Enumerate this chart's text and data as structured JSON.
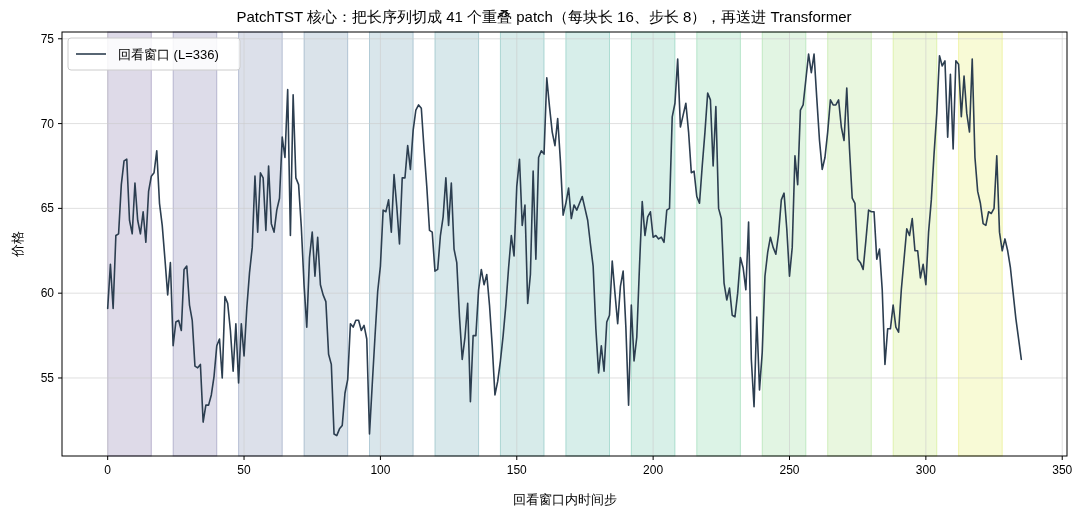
{
  "chart_data": {
    "type": "line",
    "title": "PatchTST 核心：把长序列切成 41 个重叠 patch（每块长 16、步长 8），再送进 Transformer",
    "xlabel": "回看窗口内时间步",
    "ylabel": "价格",
    "x": [
      0,
      1,
      2,
      3,
      4,
      5,
      6,
      7,
      8,
      9,
      10,
      11,
      12,
      13,
      14,
      15,
      16,
      17,
      18,
      19,
      20,
      21,
      22,
      23,
      24,
      25,
      26,
      27,
      28,
      29,
      30,
      31,
      32,
      33,
      34,
      35,
      36,
      37,
      38,
      39,
      40,
      41,
      42,
      43,
      44,
      45,
      46,
      47,
      48,
      49,
      50,
      51,
      52,
      53,
      54,
      55,
      56,
      57,
      58,
      59,
      60,
      61,
      62,
      63,
      64,
      65,
      66,
      67,
      68,
      69,
      70,
      71,
      72,
      73,
      74,
      75,
      76,
      77,
      78,
      79,
      80,
      81,
      82,
      83,
      84,
      85,
      86,
      87,
      88,
      89,
      90,
      91,
      92,
      93,
      94,
      95,
      96,
      97,
      98,
      99,
      100,
      101,
      102,
      103,
      104,
      105,
      106,
      107,
      108,
      109,
      110,
      111,
      112,
      113,
      114,
      115,
      116,
      117,
      118,
      119,
      120,
      121,
      122,
      123,
      124,
      125,
      126,
      127,
      128,
      129,
      130,
      131,
      132,
      133,
      134,
      135,
      136,
      137,
      138,
      139,
      140,
      141,
      142,
      143,
      144,
      145,
      146,
      147,
      148,
      149,
      150,
      151,
      152,
      153,
      154,
      155,
      156,
      157,
      158,
      159,
      160,
      161,
      162,
      163,
      164,
      165,
      166,
      167,
      168,
      169,
      170,
      171,
      172,
      173,
      174,
      175,
      176,
      177,
      178,
      179,
      180,
      181,
      182,
      183,
      184,
      185,
      186,
      187,
      188,
      189,
      190,
      191,
      192,
      193,
      194,
      195,
      196,
      197,
      198,
      199,
      200,
      201,
      202,
      203,
      204,
      205,
      206,
      207,
      208,
      209,
      210,
      211,
      212,
      213,
      214,
      215,
      216,
      217,
      218,
      219,
      220,
      221,
      222,
      223,
      224,
      225,
      226,
      227,
      228,
      229,
      230,
      231,
      232,
      233,
      234,
      235,
      236,
      237,
      238,
      239,
      240,
      241,
      242,
      243,
      244,
      245,
      246,
      247,
      248,
      249,
      250,
      251,
      252,
      253,
      254,
      255,
      256,
      257,
      258,
      259,
      260,
      261,
      262,
      263,
      264,
      265,
      266,
      267,
      268,
      269,
      270,
      271,
      272,
      273,
      274,
      275,
      276,
      277,
      278,
      279,
      280,
      281,
      282,
      283,
      284,
      285,
      286,
      287,
      288,
      289,
      290,
      291,
      292,
      293,
      294,
      295,
      296,
      297,
      298,
      299,
      300,
      301,
      302,
      303,
      304,
      305,
      306,
      307,
      308,
      309,
      310,
      311,
      312,
      313,
      314,
      315,
      316,
      317,
      318,
      319,
      320,
      321,
      322,
      323,
      324,
      325,
      326,
      327,
      328,
      329,
      330,
      331,
      332,
      333,
      334,
      335
    ],
    "series": [
      {
        "name": "回看窗口 (L=336)",
        "color": "#2c3e50",
        "values": [
          59.1,
          61.7,
          59.1,
          63.4,
          63.5,
          66.4,
          67.8,
          67.9,
          64.3,
          63.5,
          66.5,
          64.3,
          63.5,
          64.8,
          63.0,
          66.0,
          66.9,
          67.1,
          68.4,
          65.3,
          64.0,
          62.0,
          59.9,
          61.8,
          56.9,
          58.3,
          58.4,
          57.8,
          61.4,
          61.6,
          59.3,
          58.4,
          55.7,
          55.6,
          55.8,
          52.4,
          53.4,
          53.4,
          54.0,
          55.1,
          56.9,
          57.3,
          55.0,
          59.8,
          59.4,
          57.8,
          55.4,
          58.2,
          54.7,
          58.2,
          56.3,
          59.1,
          61.2,
          62.7,
          66.9,
          63.6,
          67.1,
          66.8,
          63.7,
          67.5,
          64.1,
          63.6,
          64.9,
          65.6,
          69.2,
          68.0,
          72.0,
          63.4,
          71.7,
          66.8,
          66.4,
          63.9,
          60.5,
          58.0,
          62.1,
          63.6,
          61.0,
          63.3,
          60.5,
          59.9,
          59.5,
          56.4,
          55.8,
          51.7,
          51.6,
          52.0,
          52.2,
          54.1,
          54.9,
          58.2,
          58.0,
          58.4,
          58.4,
          57.8,
          58.1,
          57.3,
          51.7,
          54.6,
          57.4,
          60.1,
          61.6,
          64.9,
          64.8,
          65.5,
          63.6,
          67.0,
          65.1,
          62.9,
          66.8,
          66.8,
          68.7,
          67.3,
          69.6,
          70.8,
          71.1,
          70.9,
          68.5,
          66.3,
          63.7,
          63.6,
          61.3,
          61.4,
          63.4,
          64.5,
          66.8,
          64.0,
          66.5,
          62.6,
          61.8,
          58.6,
          56.1,
          57.4,
          59.4,
          53.6,
          57.5,
          57.5,
          60.2,
          61.4,
          60.5,
          61.1,
          59.3,
          56.9,
          54.0,
          54.8,
          56.0,
          57.5,
          59.3,
          61.5,
          63.4,
          62.2,
          66.3,
          67.9,
          64.0,
          65.2,
          59.4,
          61.1,
          67.2,
          62.0,
          68.0,
          68.4,
          68.2,
          72.7,
          71.0,
          69.5,
          68.7,
          70.3,
          67.8,
          64.6,
          65.3,
          66.2,
          64.4,
          65.2,
          64.9,
          65.3,
          65.7,
          65.0,
          64.3,
          62.9,
          61.6,
          57.9,
          55.3,
          56.9,
          55.4,
          58.3,
          58.7,
          61.9,
          60.0,
          58.2,
          60.4,
          61.3,
          58.0,
          53.4,
          59.3,
          56.0,
          57.4,
          61.6,
          65.4,
          63.4,
          64.5,
          64.8,
          63.3,
          63.4,
          63.2,
          63.3,
          63.0,
          64.9,
          65.0,
          70.4,
          71.2,
          73.8,
          69.8,
          70.5,
          71.2,
          69.5,
          67.1,
          67.2,
          65.7,
          65.3,
          67.5,
          69.5,
          71.8,
          71.4,
          67.5,
          71.0,
          65.0,
          64.4,
          60.6,
          59.6,
          60.3,
          58.7,
          58.6,
          60.0,
          62.1,
          61.5,
          60.2,
          64.2,
          56.1,
          53.3,
          58.6,
          54.3,
          56.5,
          61.0,
          62.4,
          63.3,
          62.7,
          62.3,
          63.5,
          65.5,
          65.9,
          63.8,
          61.0,
          62.7,
          68.1,
          66.4,
          70.8,
          71.1,
          72.6,
          74.1,
          73.0,
          74.1,
          71.5,
          69.0,
          67.3,
          68.0,
          69.5,
          71.4,
          71.1,
          71.1,
          71.4,
          69.8,
          69.0,
          72.1,
          68.5,
          65.6,
          65.3,
          62.0,
          61.8,
          61.4,
          63.1,
          64.9,
          64.8,
          64.8,
          62.0,
          62.6,
          60.2,
          55.8,
          57.9,
          57.9,
          59.3,
          58.0,
          57.7,
          60.2,
          62.0,
          63.8,
          63.4,
          64.4,
          62.5,
          62.5,
          60.9,
          61.7,
          60.5,
          63.6,
          65.5,
          68.2,
          70.6,
          74.0,
          73.4,
          73.7,
          69.2,
          72.9,
          68.5,
          73.7,
          73.5,
          70.4,
          72.8,
          70.6,
          69.5,
          73.8,
          68.0,
          66.0,
          65.3,
          64.1,
          64.0,
          64.8,
          64.7,
          65.0,
          68.1,
          63.6,
          62.5,
          63.2,
          62.5,
          61.5,
          60.0,
          58.5,
          57.3,
          56.1
        ]
      }
    ],
    "bands": [
      {
        "axis": "x",
        "from": 0,
        "to": 16,
        "color": "#46337e"
      },
      {
        "axis": "x",
        "from": 24,
        "to": 40,
        "color": "#433e85"
      },
      {
        "axis": "x",
        "from": 48,
        "to": 64,
        "color": "#3b528b"
      },
      {
        "axis": "x",
        "from": 72,
        "to": 88,
        "color": "#33638d"
      },
      {
        "axis": "x",
        "from": 96,
        "to": 112,
        "color": "#2c728e"
      },
      {
        "axis": "x",
        "from": 120,
        "to": 136,
        "color": "#26828e"
      },
      {
        "axis": "x",
        "from": 144,
        "to": 160,
        "color": "#21918c"
      },
      {
        "axis": "x",
        "from": 168,
        "to": 184,
        "color": "#1f9e89"
      },
      {
        "axis": "x",
        "from": 192,
        "to": 208,
        "color": "#27ad81"
      },
      {
        "axis": "x",
        "from": 216,
        "to": 232,
        "color": "#3fbc73"
      },
      {
        "axis": "x",
        "from": 240,
        "to": 256,
        "color": "#5ec962"
      },
      {
        "axis": "x",
        "from": 264,
        "to": 280,
        "color": "#84d44b"
      },
      {
        "axis": "x",
        "from": 288,
        "to": 304,
        "color": "#addc30"
      },
      {
        "axis": "x",
        "from": 312,
        "to": 328,
        "color": "#d8e219"
      }
    ],
    "xlim": [
      -16.75,
      351.75
    ],
    "xticks": [
      0,
      50,
      100,
      150,
      200,
      250,
      300,
      350
    ],
    "ylim": [
      50.4,
      75.4
    ],
    "yticks": [
      55,
      60,
      65,
      70,
      75
    ],
    "grid": true,
    "legend": "top left"
  }
}
